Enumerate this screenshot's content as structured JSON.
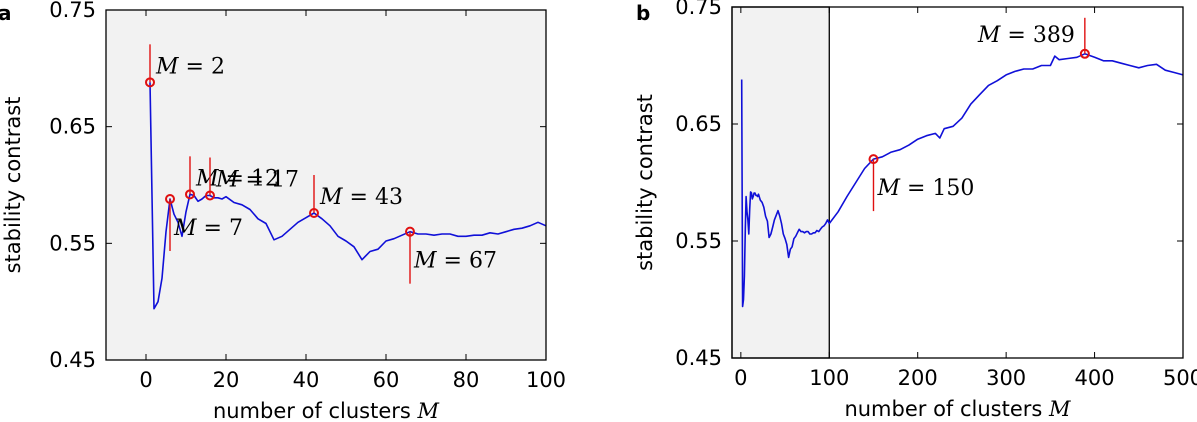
{
  "chart_data": [
    {
      "type": "line",
      "panel_label": "a",
      "xlabel": "number of clusters",
      "xlabel_symbol": "M",
      "ylabel": "stability contrast",
      "xlim": [
        -10,
        100
      ],
      "ylim": [
        0.45,
        0.75
      ],
      "xticks": [
        0,
        20,
        40,
        60,
        80,
        100
      ],
      "yticks": [
        "0.45",
        "0.55",
        "0.65",
        "0.75"
      ],
      "background": "#f2f2f2",
      "series": [
        {
          "color": "#1010d8",
          "x": [
            1,
            2,
            3,
            4,
            5,
            6,
            7,
            8,
            9,
            10,
            11,
            12,
            13,
            14,
            15,
            16,
            17,
            18,
            19,
            20,
            22,
            24,
            26,
            28,
            30,
            32,
            34,
            36,
            38,
            40,
            42,
            44,
            46,
            48,
            50,
            52,
            54,
            56,
            58,
            60,
            62,
            64,
            66,
            68,
            70,
            72,
            74,
            76,
            78,
            80,
            82,
            84,
            86,
            88,
            90,
            92,
            94,
            96,
            98,
            100
          ],
          "y": [
            0.688,
            0.494,
            0.5,
            0.52,
            0.56,
            0.588,
            0.575,
            0.568,
            0.556,
            0.577,
            0.592,
            0.591,
            0.586,
            0.588,
            0.591,
            0.591,
            0.589,
            0.589,
            0.588,
            0.59,
            0.585,
            0.583,
            0.579,
            0.571,
            0.567,
            0.553,
            0.556,
            0.562,
            0.568,
            0.572,
            0.576,
            0.571,
            0.565,
            0.556,
            0.552,
            0.547,
            0.536,
            0.543,
            0.545,
            0.552,
            0.554,
            0.557,
            0.56,
            0.558,
            0.558,
            0.557,
            0.558,
            0.558,
            0.556,
            0.556,
            0.557,
            0.557,
            0.559,
            0.558,
            0.56,
            0.562,
            0.563,
            0.565,
            0.568,
            0.565
          ]
        }
      ],
      "annotations": [
        {
          "x": 1,
          "y": 0.688,
          "text": "M = 2",
          "placement": "above-right"
        },
        {
          "x": 6,
          "y": 0.588,
          "text": "M = 7",
          "placement": "below-right"
        },
        {
          "x": 11,
          "y": 0.592,
          "text": "M = 12",
          "placement": "above-right"
        },
        {
          "x": 16,
          "y": 0.591,
          "text": "M = 17",
          "placement": "above-right"
        },
        {
          "x": 42,
          "y": 0.576,
          "text": "M = 43",
          "placement": "above-right"
        },
        {
          "x": 66,
          "y": 0.56,
          "text": "M = 67",
          "placement": "below-right"
        }
      ]
    },
    {
      "type": "line",
      "panel_label": "b",
      "xlabel": "number of clusters",
      "xlabel_symbol": "M",
      "ylabel": "stability contrast",
      "xlim": [
        -10,
        500
      ],
      "ylim": [
        0.45,
        0.75
      ],
      "xticks": [
        0,
        100,
        200,
        300,
        400,
        500
      ],
      "yticks": [
        "0.45",
        "0.55",
        "0.65",
        "0.75"
      ],
      "background": "#ffffff",
      "highlight_region": {
        "x": [
          -10,
          100
        ],
        "color": "#f2f2f2"
      },
      "series": [
        {
          "color": "#1010d8",
          "x": [
            1,
            2,
            3,
            4,
            5,
            6,
            7,
            8,
            9,
            10,
            11,
            12,
            13,
            14,
            15,
            16,
            17,
            18,
            19,
            20,
            22,
            24,
            26,
            28,
            30,
            32,
            34,
            36,
            38,
            40,
            42,
            44,
            46,
            48,
            50,
            52,
            54,
            56,
            58,
            60,
            62,
            64,
            66,
            68,
            70,
            72,
            74,
            76,
            78,
            80,
            82,
            84,
            86,
            88,
            90,
            92,
            94,
            96,
            98,
            100,
            110,
            120,
            130,
            140,
            150,
            160,
            170,
            180,
            190,
            200,
            210,
            220,
            225,
            230,
            240,
            250,
            260,
            270,
            280,
            290,
            300,
            310,
            320,
            330,
            340,
            350,
            355,
            360,
            370,
            380,
            389,
            400,
            410,
            420,
            430,
            440,
            450,
            460,
            470,
            480,
            490,
            500
          ],
          "y": [
            0.688,
            0.494,
            0.5,
            0.52,
            0.56,
            0.588,
            0.575,
            0.568,
            0.556,
            0.577,
            0.592,
            0.591,
            0.586,
            0.588,
            0.591,
            0.591,
            0.589,
            0.589,
            0.588,
            0.59,
            0.585,
            0.583,
            0.579,
            0.571,
            0.567,
            0.553,
            0.556,
            0.562,
            0.568,
            0.572,
            0.576,
            0.571,
            0.565,
            0.556,
            0.552,
            0.547,
            0.536,
            0.543,
            0.545,
            0.552,
            0.554,
            0.557,
            0.56,
            0.558,
            0.558,
            0.557,
            0.558,
            0.558,
            0.556,
            0.556,
            0.557,
            0.557,
            0.559,
            0.558,
            0.56,
            0.562,
            0.563,
            0.565,
            0.568,
            0.565,
            0.575,
            0.588,
            0.6,
            0.612,
            0.62,
            0.622,
            0.626,
            0.628,
            0.632,
            0.637,
            0.64,
            0.642,
            0.638,
            0.646,
            0.648,
            0.655,
            0.667,
            0.675,
            0.683,
            0.687,
            0.692,
            0.695,
            0.697,
            0.697,
            0.7,
            0.7,
            0.708,
            0.705,
            0.706,
            0.707,
            0.71,
            0.707,
            0.704,
            0.704,
            0.702,
            0.7,
            0.698,
            0.7,
            0.701,
            0.696,
            0.694,
            0.692
          ]
        }
      ],
      "annotations": [
        {
          "x": 150,
          "y": 0.62,
          "text": "M = 150",
          "placement": "below-right"
        },
        {
          "x": 389,
          "y": 0.71,
          "text": "M = 389",
          "placement": "above-left"
        }
      ]
    }
  ]
}
